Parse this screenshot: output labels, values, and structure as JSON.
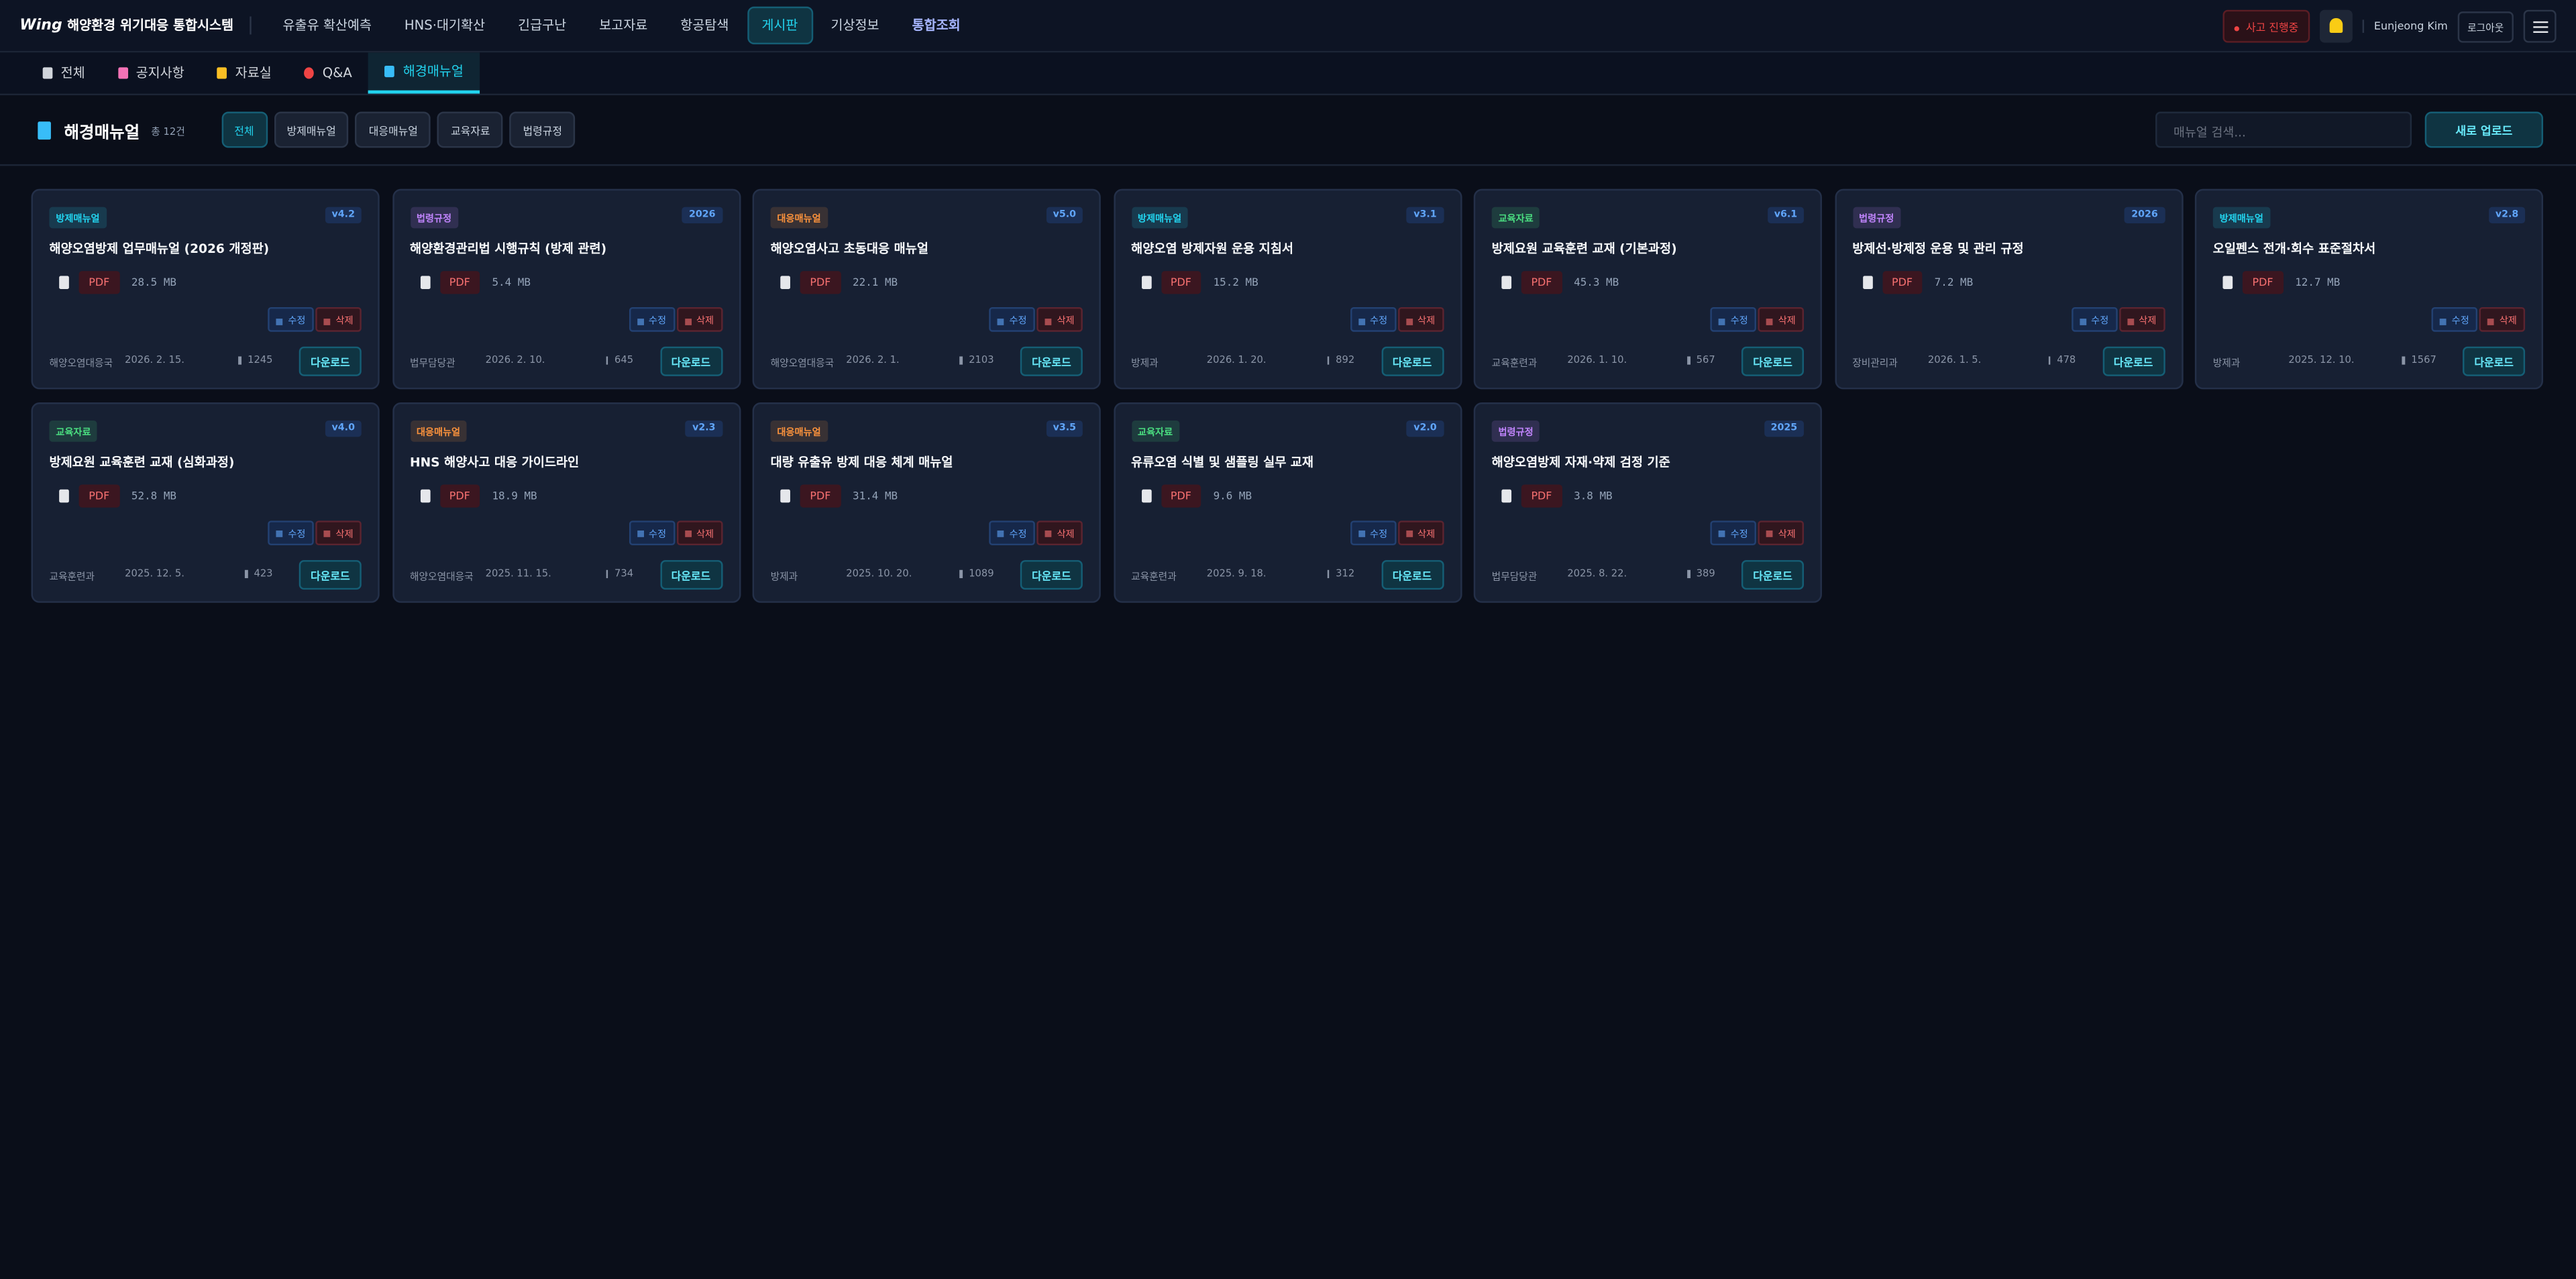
{
  "header": {
    "logo": "Wing",
    "title": "해양환경 위기대응 통합시스템",
    "nav": [
      "유출유 확산예측",
      "HNS·대기확산",
      "긴급구난",
      "보고자료",
      "항공탐색",
      "게시판",
      "기상정보",
      "통합조회"
    ],
    "alert": "사고 진행중",
    "user": "Eunjeong Kim",
    "logout": "로그아웃"
  },
  "tabs": [
    "전체",
    "공지사항",
    "자료실",
    "Q&A",
    "해경매뉴얼"
  ],
  "toolbar": {
    "title": "해경매뉴얼",
    "count": "총 12건",
    "filters": [
      "전체",
      "방제매뉴얼",
      "대응매뉴얼",
      "교육자료",
      "법령규정"
    ],
    "search_placeholder": "매뉴얼 검색...",
    "upload": "새로 업로드"
  },
  "card_actions": {
    "edit": "수정",
    "delete": "삭제",
    "download": "다운로드"
  },
  "cards": [
    {
      "category": "방제매뉴얼",
      "tag_color": "#22d3ee",
      "version": "v4.2",
      "title": "해양오염방제 업무매뉴얼 (2026 개정판)",
      "file_type": "PDF",
      "size": "28.5 MB",
      "department": "해양오염대응국",
      "date": "2026. 2. 15.",
      "downloads": 1245
    },
    {
      "category": "법령규정",
      "tag_color": "#c084fc",
      "version": "2026",
      "title": "해양환경관리법 시행규칙 (방제 관련)",
      "file_type": "PDF",
      "size": "5.4 MB",
      "department": "법무담당관",
      "date": "2026. 2. 10.",
      "downloads": 645
    },
    {
      "category": "대응매뉴얼",
      "tag_color": "#fb923c",
      "version": "v5.0",
      "title": "해양오염사고 초동대응 매뉴얼",
      "file_type": "PDF",
      "size": "22.1 MB",
      "department": "해양오염대응국",
      "date": "2026. 2. 1.",
      "downloads": 2103
    },
    {
      "category": "방제매뉴얼",
      "tag_color": "#22d3ee",
      "version": "v3.1",
      "title": "해양오염 방제자원 운용 지침서",
      "file_type": "PDF",
      "size": "15.2 MB",
      "department": "방제과",
      "date": "2026. 1. 20.",
      "downloads": 892
    },
    {
      "category": "교육자료",
      "tag_color": "#4ade80",
      "version": "v6.1",
      "title": "방제요원 교육훈련 교재 (기본과정)",
      "file_type": "PDF",
      "size": "45.3 MB",
      "department": "교육훈련과",
      "date": "2026. 1. 10.",
      "downloads": 567
    },
    {
      "category": "법령규정",
      "tag_color": "#c084fc",
      "version": "2026",
      "title": "방제선·방제정 운용 및 관리 규정",
      "file_type": "PDF",
      "size": "7.2 MB",
      "department": "장비관리과",
      "date": "2026. 1. 5.",
      "downloads": 478
    },
    {
      "category": "방제매뉴얼",
      "tag_color": "#22d3ee",
      "version": "v2.8",
      "title": "오일펜스 전개·회수 표준절차서",
      "file_type": "PDF",
      "size": "12.7 MB",
      "department": "방제과",
      "date": "2025. 12. 10.",
      "downloads": 1567
    },
    {
      "category": "교육자료",
      "tag_color": "#4ade80",
      "version": "v4.0",
      "title": "방제요원 교육훈련 교재 (심화과정)",
      "file_type": "PDF",
      "size": "52.8 MB",
      "department": "교육훈련과",
      "date": "2025. 12. 5.",
      "downloads": 423
    },
    {
      "category": "대응매뉴얼",
      "tag_color": "#fb923c",
      "version": "v2.3",
      "title": "HNS 해양사고 대응 가이드라인",
      "file_type": "PDF",
      "size": "18.9 MB",
      "department": "해양오염대응국",
      "date": "2025. 11. 15.",
      "downloads": 734
    },
    {
      "category": "대응매뉴얼",
      "tag_color": "#fb923c",
      "version": "v3.5",
      "title": "대량 유출유 방제 대응 체계 매뉴얼",
      "file_type": "PDF",
      "size": "31.4 MB",
      "department": "방제과",
      "date": "2025. 10. 20.",
      "downloads": 1089
    },
    {
      "category": "교육자료",
      "tag_color": "#4ade80",
      "version": "v2.0",
      "title": "유류오염 식별 및 샘플링 실무 교재",
      "file_type": "PDF",
      "size": "9.6 MB",
      "department": "교육훈련과",
      "date": "2025. 9. 18.",
      "downloads": 312
    },
    {
      "category": "법령규정",
      "tag_color": "#c084fc",
      "version": "2025",
      "title": "해양오염방제 자재·약제 검정 기준",
      "file_type": "PDF",
      "size": "3.8 MB",
      "department": "법무담당관",
      "date": "2025. 8. 22.",
      "downloads": 389
    }
  ]
}
